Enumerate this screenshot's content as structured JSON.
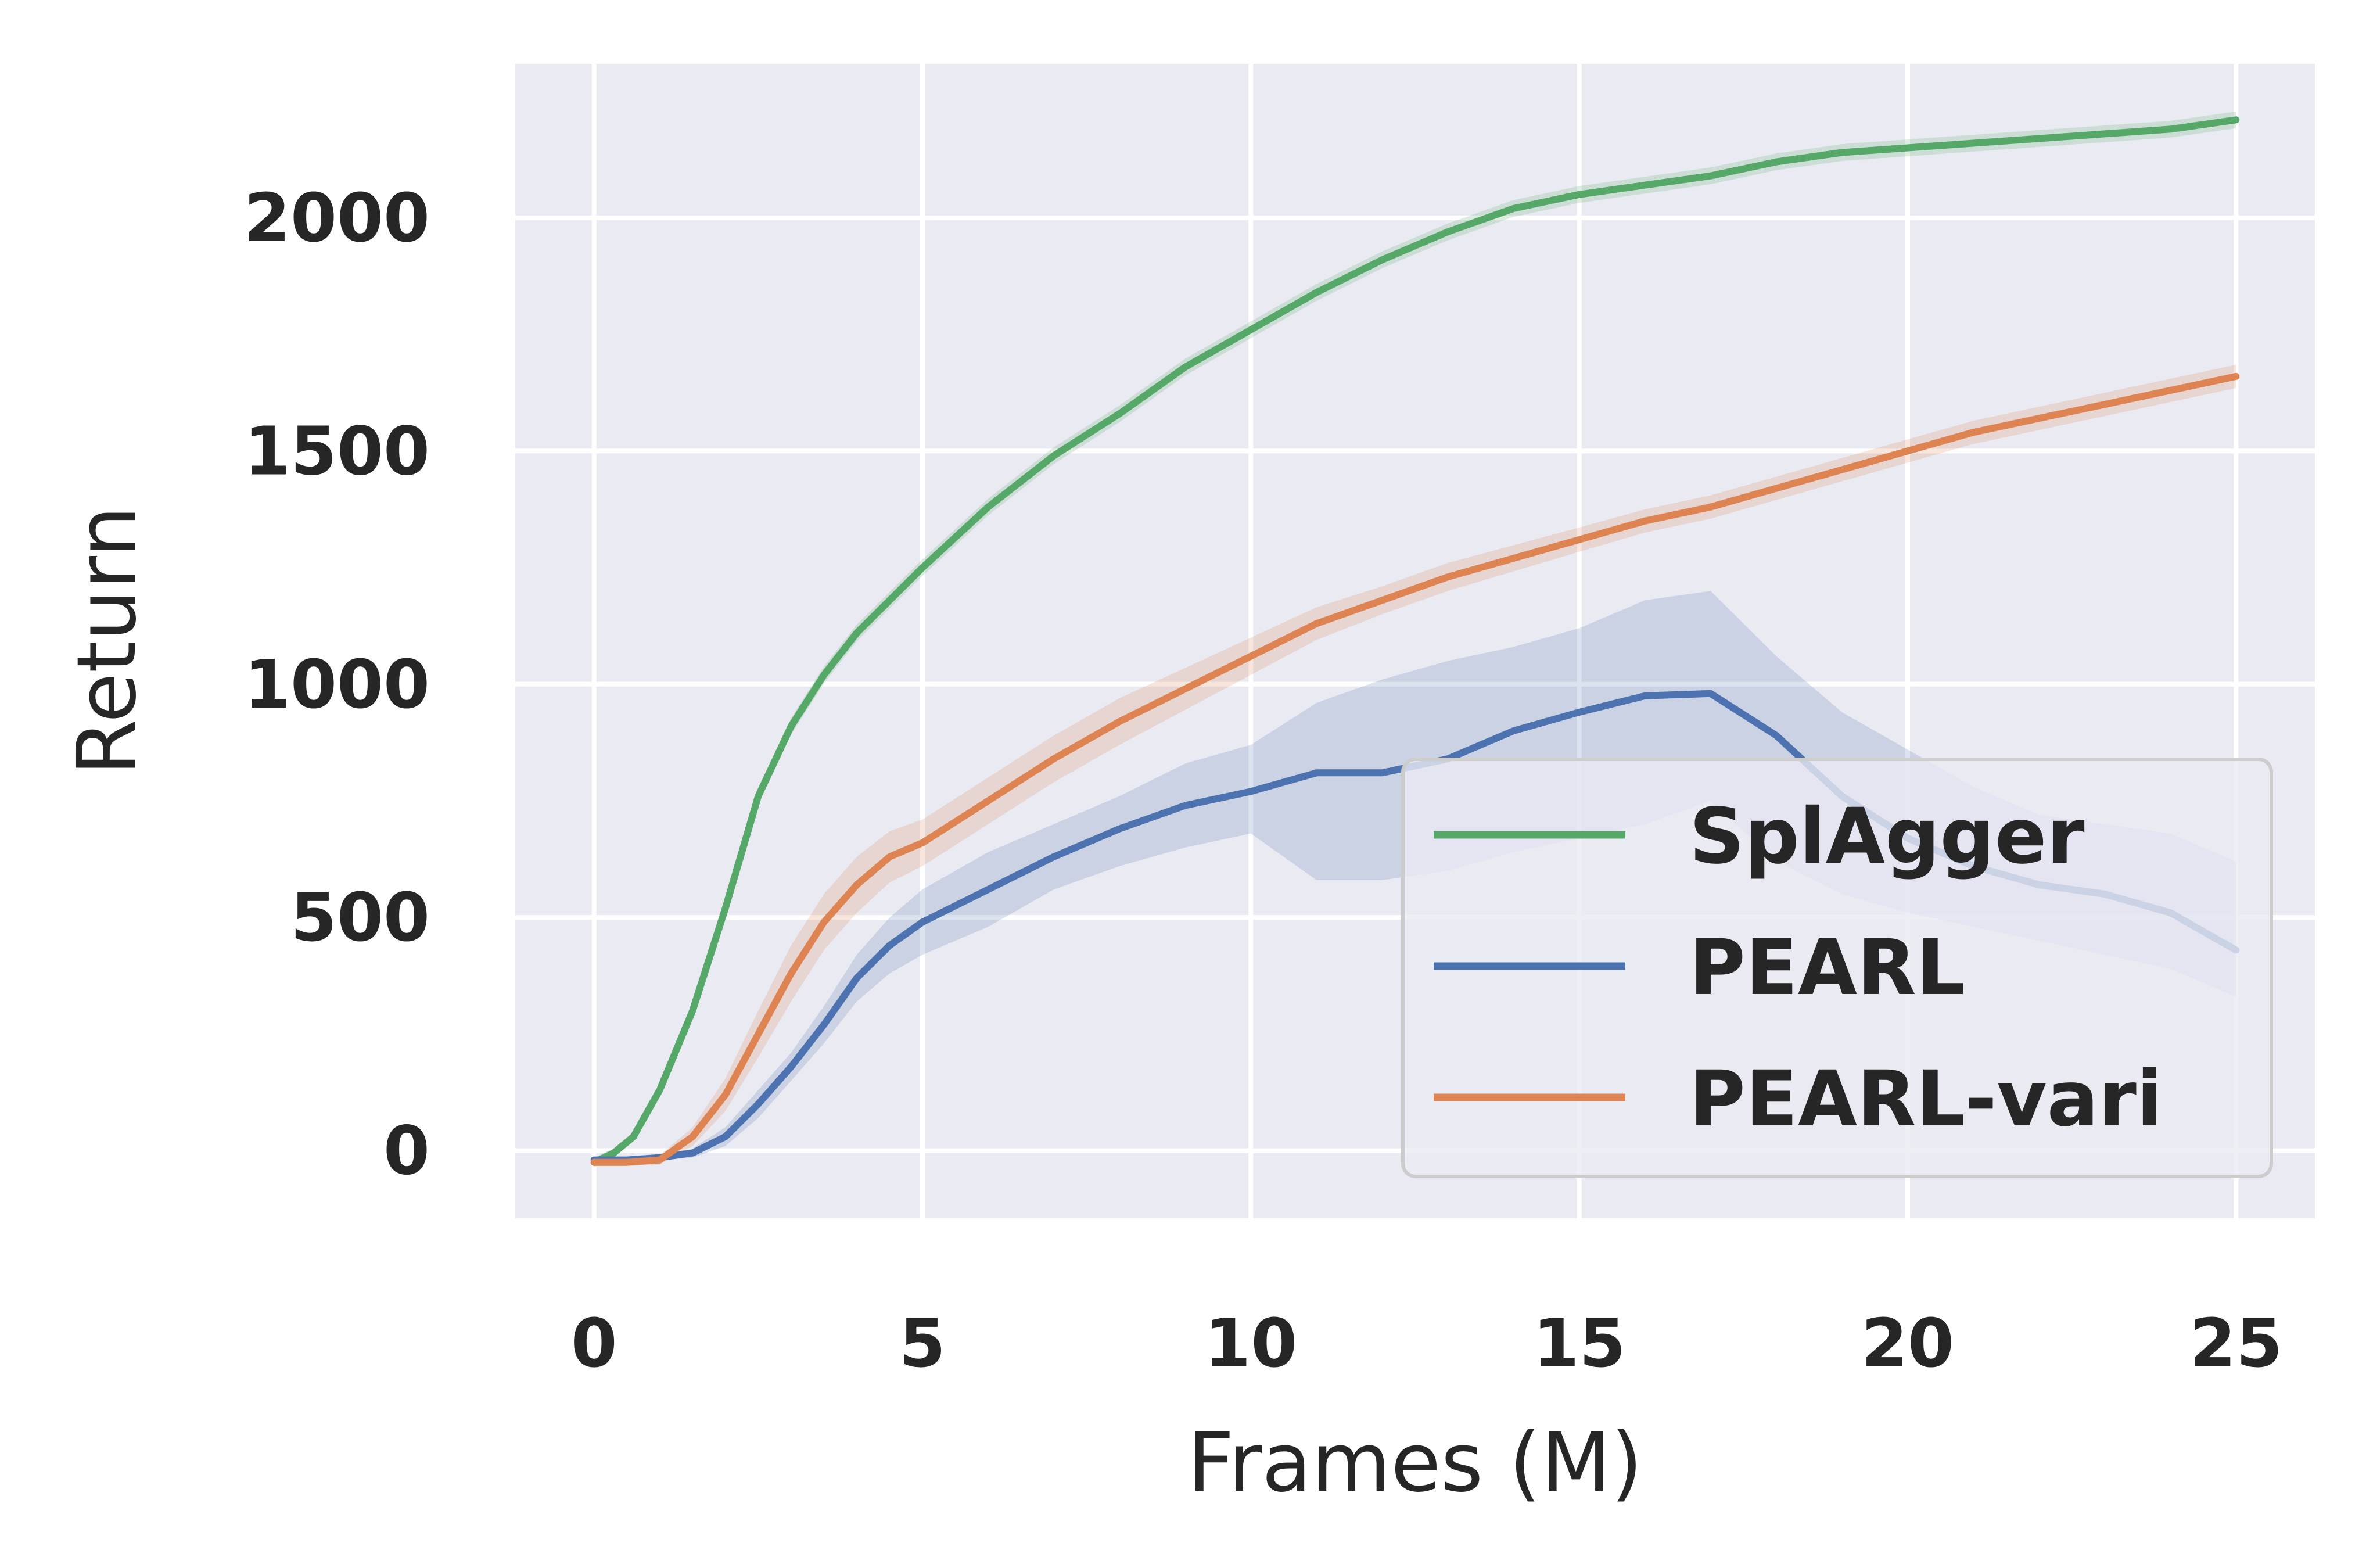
{
  "chart_data": {
    "type": "line",
    "xlabel": "Frames (M)",
    "ylabel": "Return",
    "xlim": [
      -1.2,
      26.2
    ],
    "ylim": [
      -145,
      2330
    ],
    "xticks": [
      0,
      5,
      10,
      15,
      20,
      25
    ],
    "yticks": [
      0,
      500,
      1000,
      1500,
      2000
    ],
    "xtick_labels": [
      "0",
      "5",
      "10",
      "15",
      "20",
      "25"
    ],
    "ytick_labels": [
      "0",
      "500",
      "1000",
      "1500",
      "2000"
    ],
    "grid": true,
    "legend_position": "lower-right",
    "series": [
      {
        "name": "SplAgger",
        "color": "#55a868",
        "x": [
          0,
          0.3,
          0.6,
          1.0,
          1.5,
          2.0,
          2.5,
          3.0,
          3.5,
          4.0,
          5.0,
          6.0,
          7.0,
          8.0,
          9.0,
          10.0,
          11.0,
          12.0,
          13.0,
          14.0,
          15.0,
          16.0,
          17.0,
          18.0,
          19.0,
          20.0,
          21.0,
          22.0,
          23.0,
          24.0,
          25.0
        ],
        "y": [
          -25,
          -5,
          30,
          130,
          300,
          520,
          760,
          910,
          1020,
          1110,
          1250,
          1380,
          1490,
          1580,
          1680,
          1760,
          1840,
          1910,
          1970,
          2020,
          2050,
          2070,
          2090,
          2120,
          2140,
          2150,
          2160,
          2170,
          2180,
          2190,
          2210
        ],
        "band": [
          10,
          10,
          10,
          10,
          12,
          14,
          16,
          18,
          18,
          18,
          18,
          18,
          18,
          18,
          18,
          18,
          18,
          18,
          18,
          18,
          18,
          18,
          18,
          18,
          18,
          18,
          18,
          18,
          18,
          18,
          18
        ]
      },
      {
        "name": "PEARL",
        "color": "#4c72b0",
        "x": [
          0,
          0.5,
          1.0,
          1.5,
          2.0,
          2.5,
          3.0,
          3.5,
          4.0,
          4.5,
          5.0,
          6.0,
          7.0,
          8.0,
          9.0,
          10.0,
          11.0,
          12.0,
          13.0,
          14.0,
          15.0,
          16.0,
          17.0,
          18.0,
          19.0,
          20.0,
          21.0,
          22.0,
          23.0,
          24.0,
          25.0
        ],
        "y": [
          -20,
          -20,
          -15,
          -5,
          30,
          100,
          180,
          270,
          370,
          440,
          490,
          560,
          630,
          690,
          740,
          770,
          810,
          810,
          840,
          900,
          940,
          975,
          980,
          890,
          760,
          670,
          610,
          570,
          550,
          510,
          430
        ],
        "lower": [
          -25,
          -25,
          -20,
          -15,
          10,
          70,
          150,
          230,
          320,
          380,
          420,
          480,
          560,
          610,
          650,
          680,
          580,
          580,
          600,
          640,
          670,
          700,
          750,
          620,
          550,
          510,
          480,
          450,
          420,
          390,
          330
        ],
        "upper": [
          -15,
          -15,
          -10,
          5,
          50,
          130,
          210,
          310,
          420,
          500,
          560,
          640,
          700,
          760,
          830,
          870,
          960,
          1010,
          1050,
          1080,
          1120,
          1180,
          1200,
          1060,
          940,
          860,
          780,
          720,
          700,
          680,
          620
        ]
      },
      {
        "name": "PEARL-vari",
        "color": "#dd8452",
        "x": [
          0,
          0.5,
          1.0,
          1.5,
          2.0,
          2.5,
          3.0,
          3.5,
          4.0,
          4.5,
          5.0,
          6.0,
          7.0,
          8.0,
          9.0,
          10.0,
          11.0,
          12.0,
          13.0,
          14.0,
          15.0,
          16.0,
          17.0,
          18.0,
          19.0,
          20.0,
          21.0,
          22.0,
          23.0,
          24.0,
          25.0
        ],
        "y": [
          -25,
          -25,
          -20,
          30,
          120,
          250,
          380,
          490,
          570,
          630,
          660,
          750,
          840,
          920,
          990,
          1060,
          1130,
          1180,
          1230,
          1270,
          1310,
          1350,
          1380,
          1420,
          1460,
          1500,
          1540,
          1570,
          1600,
          1630,
          1660
        ],
        "band": [
          8,
          8,
          10,
          20,
          35,
          50,
          60,
          60,
          60,
          55,
          50,
          50,
          50,
          50,
          45,
          40,
          35,
          30,
          30,
          28,
          26,
          25,
          25,
          25,
          25,
          25,
          25,
          25,
          25,
          25,
          25
        ]
      }
    ]
  }
}
